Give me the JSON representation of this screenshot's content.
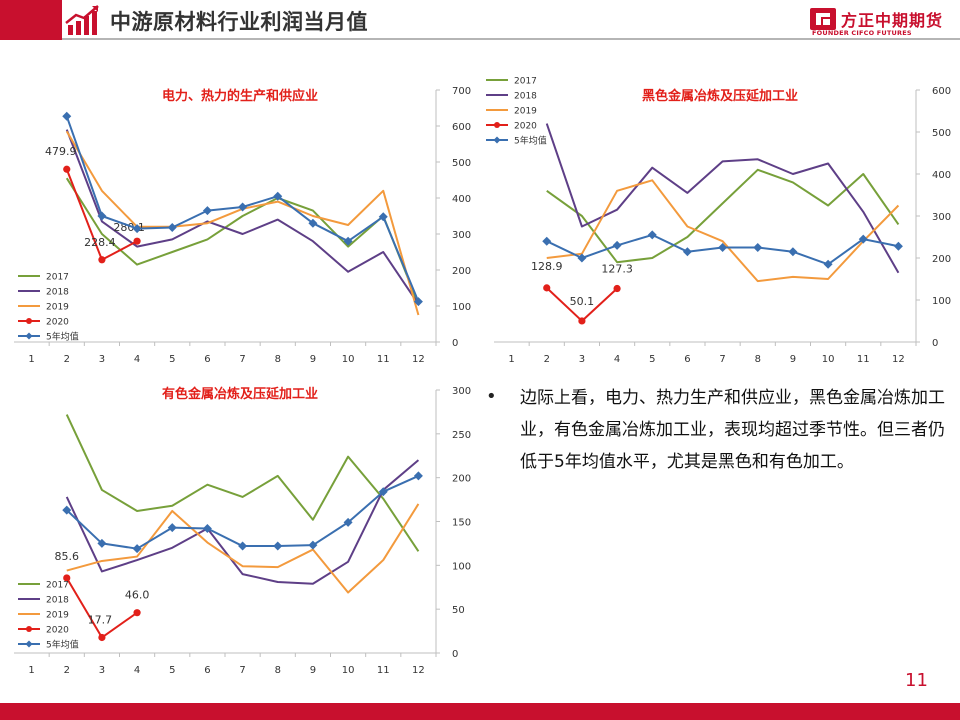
{
  "page": {
    "title": "中游原材料行业利润当月值",
    "logo_cn": "方正中期期货",
    "logo_en": "FOUNDER CIFCO FUTURES",
    "page_number": "11",
    "bullet": "边际上看，电力、热力生产和供应业，黑色金属冶炼加工业，有色金属冶炼加工业，表现均超过季节性。但三者仍低于5年均值水平，尤其是黑色和有色加工。"
  },
  "colors": {
    "brand_red": "#c8102e",
    "s2017": "#77a03a",
    "s2018": "#5e3f87",
    "s2019": "#f39a3d",
    "s2020": "#e2201a",
    "s5yr": "#3a6fb0"
  },
  "chart_data": [
    {
      "type": "line",
      "title": "电力、热力的生产和供应业",
      "x": [
        1,
        2,
        3,
        4,
        5,
        6,
        7,
        8,
        9,
        10,
        11,
        12
      ],
      "ylim": [
        0,
        700
      ],
      "yticks": [
        0,
        100,
        200,
        300,
        400,
        500,
        600,
        700
      ],
      "y_axis_side": "right",
      "legend_position": "bottom-left",
      "series": [
        {
          "name": "2017",
          "color": "#77a03a",
          "marker": "none",
          "values": [
            null,
            455,
            300,
            215,
            250,
            285,
            350,
            400,
            365,
            265,
            350,
            105
          ]
        },
        {
          "name": "2018",
          "color": "#5e3f87",
          "marker": "none",
          "values": [
            null,
            590,
            335,
            265,
            285,
            335,
            300,
            340,
            280,
            195,
            250,
            105
          ]
        },
        {
          "name": "2019",
          "color": "#f39a3d",
          "marker": "none",
          "values": [
            null,
            585,
            420,
            320,
            320,
            330,
            370,
            390,
            350,
            325,
            420,
            75
          ]
        },
        {
          "name": "2020",
          "color": "#e2201a",
          "marker": "circle",
          "values": [
            null,
            479.9,
            228.4,
            280.1,
            null,
            null,
            null,
            null,
            null,
            null,
            null,
            null
          ],
          "labels": [
            "",
            "479.9",
            "228.4",
            "280.1",
            "",
            "",
            "",
            "",
            "",
            "",
            "",
            ""
          ]
        },
        {
          "name": "5年均值",
          "color": "#3a6fb0",
          "marker": "diamond",
          "values": [
            null,
            627,
            350,
            315,
            318,
            365,
            375,
            405,
            330,
            280,
            348,
            112
          ]
        }
      ]
    },
    {
      "type": "line",
      "title": "黑色金属冶炼及压延加工业",
      "x": [
        1,
        2,
        3,
        4,
        5,
        6,
        7,
        8,
        9,
        10,
        11,
        12
      ],
      "ylim": [
        0,
        600
      ],
      "yticks": [
        0,
        100,
        200,
        300,
        400,
        500,
        600
      ],
      "y_axis_side": "right",
      "legend_position": "top-left",
      "series": [
        {
          "name": "2017",
          "color": "#77a03a",
          "marker": "none",
          "values": [
            null,
            360,
            300,
            190,
            200,
            250,
            330,
            410,
            380,
            325,
            400,
            280
          ]
        },
        {
          "name": "2018",
          "color": "#5e3f87",
          "marker": "none",
          "values": [
            null,
            520,
            275,
            315,
            415,
            355,
            430,
            435,
            400,
            425,
            310,
            165
          ]
        },
        {
          "name": "2019",
          "color": "#f39a3d",
          "marker": "none",
          "values": [
            null,
            200,
            210,
            360,
            385,
            275,
            240,
            145,
            155,
            150,
            240,
            325
          ]
        },
        {
          "name": "2020",
          "color": "#e2201a",
          "marker": "circle",
          "values": [
            null,
            128.9,
            50.1,
            127.3,
            null,
            null,
            null,
            null,
            null,
            null,
            null,
            null
          ],
          "labels": [
            "",
            "128.9",
            "50.1",
            "127.3",
            "",
            "",
            "",
            "",
            "",
            "",
            "",
            ""
          ]
        },
        {
          "name": "5年均值",
          "color": "#3a6fb0",
          "marker": "diamond",
          "values": [
            null,
            240,
            200,
            230,
            255,
            215,
            225,
            225,
            215,
            185,
            245,
            228
          ]
        }
      ]
    },
    {
      "type": "line",
      "title": "有色金属冶炼及压延加工业",
      "x": [
        1,
        2,
        3,
        4,
        5,
        6,
        7,
        8,
        9,
        10,
        11,
        12
      ],
      "ylim": [
        0,
        300
      ],
      "yticks": [
        0,
        50,
        100,
        150,
        200,
        250,
        300
      ],
      "y_axis_side": "right",
      "legend_position": "bottom-left",
      "series": [
        {
          "name": "2017",
          "color": "#77a03a",
          "marker": "none",
          "values": [
            null,
            272,
            186,
            162,
            168,
            192,
            178,
            202,
            152,
            224,
            176,
            116
          ]
        },
        {
          "name": "2018",
          "color": "#5e3f87",
          "marker": "none",
          "values": [
            null,
            178,
            93,
            106,
            120,
            142,
            90,
            81,
            79,
            104,
            186,
            220
          ]
        },
        {
          "name": "2019",
          "color": "#f39a3d",
          "marker": "none",
          "values": [
            null,
            94,
            105,
            110,
            162,
            126,
            99,
            98,
            118,
            69,
            106,
            170
          ]
        },
        {
          "name": "2020",
          "color": "#e2201a",
          "marker": "circle",
          "values": [
            null,
            85.6,
            17.7,
            46.0,
            null,
            null,
            null,
            null,
            null,
            null,
            null,
            null
          ],
          "labels": [
            "",
            "85.6",
            "17.7",
            "46.0",
            "",
            "",
            "",
            "",
            "",
            "",
            "",
            ""
          ]
        },
        {
          "name": "5年均值",
          "color": "#3a6fb0",
          "marker": "diamond",
          "values": [
            null,
            163,
            125,
            119,
            143,
            142,
            122,
            122,
            123,
            149,
            184,
            202
          ]
        }
      ]
    }
  ]
}
